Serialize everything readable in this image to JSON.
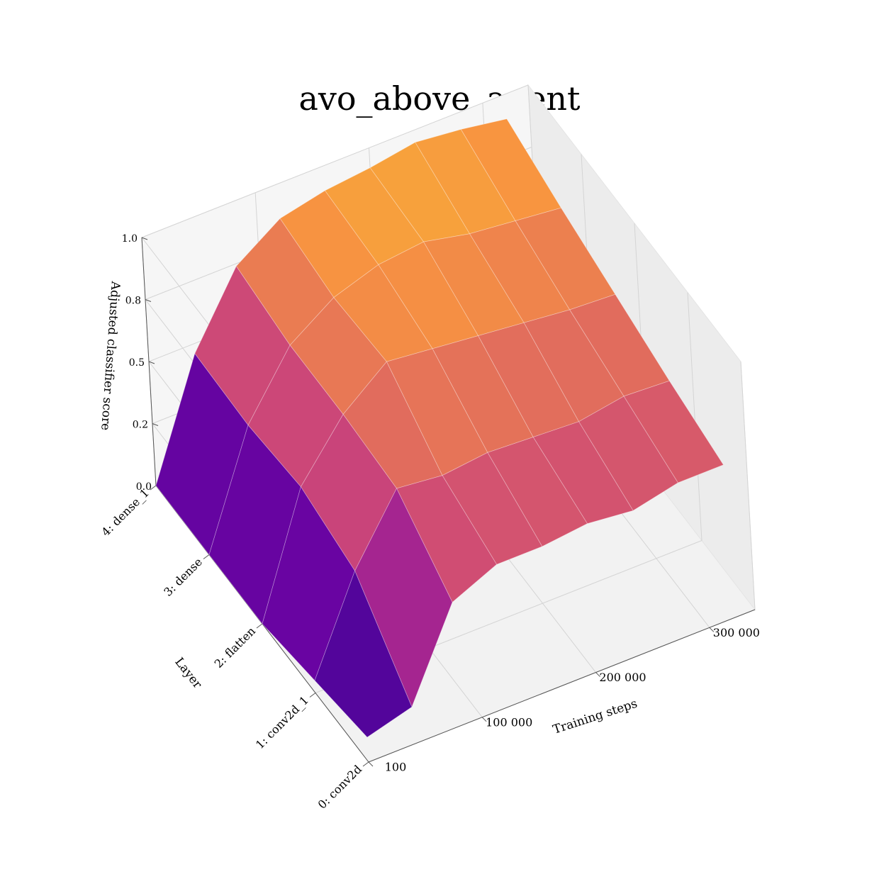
{
  "chart_data": {
    "type": "surface3d",
    "title": "avo_above_agent",
    "xlabel": "Training steps",
    "ylabel": "Layer",
    "zlabel": "Adjusted classifier score",
    "x": [
      100,
      40000,
      80000,
      120000,
      160000,
      200000,
      240000,
      280000,
      320000
    ],
    "x_ticks": [
      100,
      100000,
      200000,
      300000
    ],
    "x_tick_labels": [
      "100",
      "100 000",
      "200 000",
      "300 000"
    ],
    "y_categories": [
      "0: conv2d",
      "1: conv2d_1",
      "2: flatten",
      "3: dense",
      "4: dense_1"
    ],
    "z_ticks": [
      0.0,
      0.25,
      0.5,
      0.75,
      1.0
    ],
    "z_tick_labels": [
      "0.0",
      "0.2",
      "0.5",
      "0.8",
      "1.0"
    ],
    "zlim": [
      0,
      1
    ],
    "colormap": "plasma",
    "z": [
      [
        0.1,
        0.15,
        0.5,
        0.58,
        0.58,
        0.6,
        0.58,
        0.62,
        0.62
      ],
      [
        0.05,
        0.42,
        0.68,
        0.66,
        0.68,
        0.67,
        0.66,
        0.69,
        0.68
      ],
      [
        0.0,
        0.48,
        0.7,
        0.84,
        0.82,
        0.8,
        0.78,
        0.76,
        0.75
      ],
      [
        0.0,
        0.45,
        0.7,
        0.82,
        0.88,
        0.9,
        0.86,
        0.84,
        0.82
      ],
      [
        0.0,
        0.46,
        0.74,
        0.86,
        0.9,
        0.92,
        0.95,
        0.93,
        0.9
      ]
    ]
  }
}
